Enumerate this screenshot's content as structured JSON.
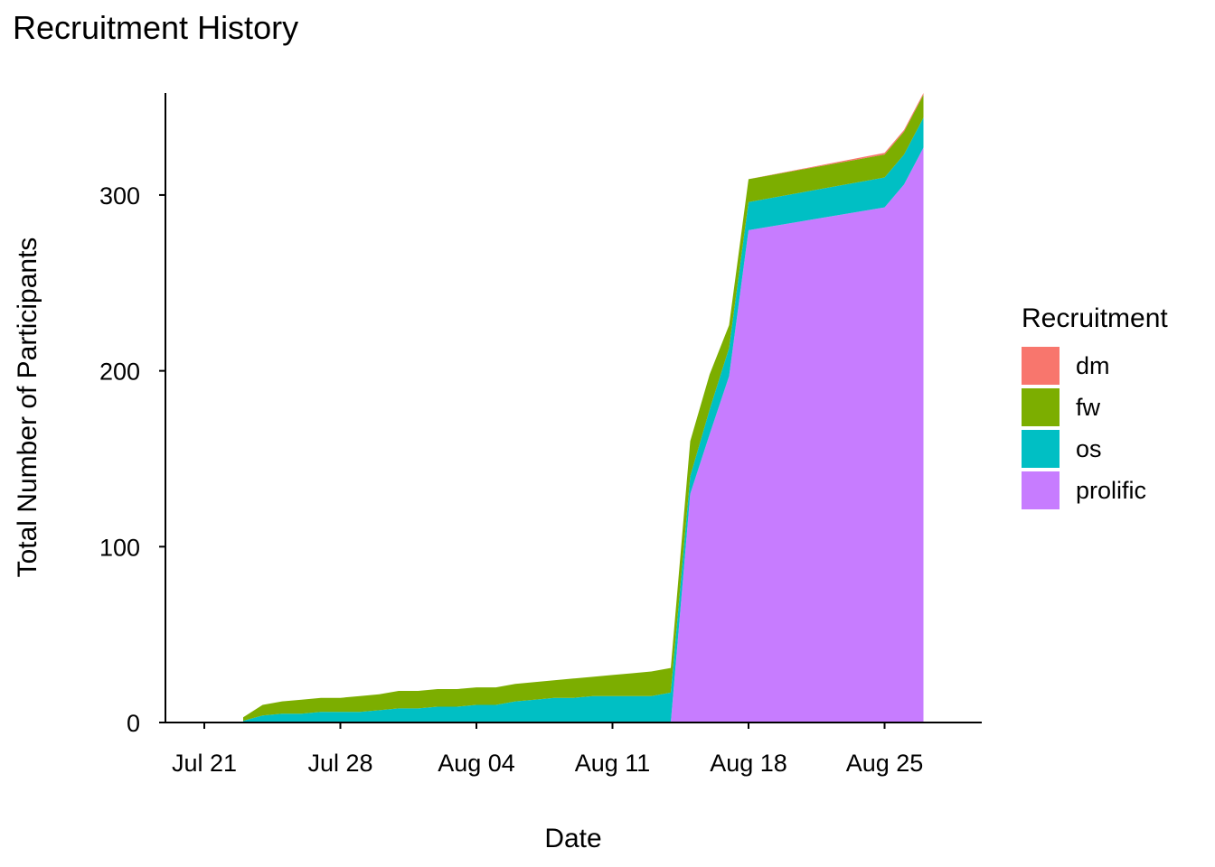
{
  "chart_data": {
    "type": "area",
    "title": "Recruitment History",
    "xlabel": "Date",
    "ylabel": "Total Number of Participants",
    "x_ticks": [
      "2022-07-21",
      "2022-07-28",
      "2022-08-04",
      "2022-08-11",
      "2022-08-18",
      "2022-08-25"
    ],
    "x_tick_labels": [
      "Jul 21",
      "Jul 28",
      "Aug 04",
      "Aug 11",
      "Aug 18",
      "Aug 25"
    ],
    "xlim": [
      "2022-07-19",
      "2022-08-30"
    ],
    "y_ticks": [
      0,
      100,
      200,
      300
    ],
    "ylim": [
      0,
      358
    ],
    "stacked": true,
    "grid": false,
    "legend_title": "Recruitment",
    "legend_position": "right",
    "x": [
      "2022-07-23",
      "2022-07-24",
      "2022-07-25",
      "2022-07-26",
      "2022-07-27",
      "2022-07-28",
      "2022-07-29",
      "2022-07-30",
      "2022-07-31",
      "2022-08-01",
      "2022-08-02",
      "2022-08-03",
      "2022-08-04",
      "2022-08-05",
      "2022-08-06",
      "2022-08-07",
      "2022-08-08",
      "2022-08-09",
      "2022-08-10",
      "2022-08-11",
      "2022-08-12",
      "2022-08-13",
      "2022-08-14",
      "2022-08-15",
      "2022-08-16",
      "2022-08-17",
      "2022-08-18",
      "2022-08-25",
      "2022-08-26",
      "2022-08-27"
    ],
    "series": [
      {
        "name": "prolific",
        "color": "#C77CFF",
        "values": [
          0,
          0,
          0,
          0,
          0,
          0,
          0,
          0,
          0,
          0,
          0,
          0,
          0,
          0,
          0,
          0,
          0,
          0,
          0,
          0,
          0,
          0,
          0,
          130,
          164,
          197,
          280,
          293,
          306,
          327
        ]
      },
      {
        "name": "os",
        "color": "#00BFC4",
        "values": [
          1,
          4,
          5,
          5,
          6,
          6,
          6,
          7,
          8,
          8,
          9,
          9,
          10,
          10,
          12,
          13,
          14,
          14,
          15,
          15,
          15,
          15,
          17,
          10,
          14,
          16,
          16,
          17,
          17,
          17
        ]
      },
      {
        "name": "fw",
        "color": "#7CAE00",
        "values": [
          2,
          6,
          7,
          8,
          8,
          8,
          9,
          9,
          10,
          10,
          10,
          10,
          10,
          10,
          10,
          10,
          10,
          11,
          11,
          12,
          13,
          14,
          14,
          20,
          20,
          13,
          13,
          13,
          13,
          13
        ]
      },
      {
        "name": "dm",
        "color": "#F8766D",
        "values": [
          0,
          0,
          0,
          0,
          0,
          0,
          0,
          0,
          0,
          0,
          0,
          0,
          0,
          0,
          0,
          0,
          0,
          0,
          0,
          0,
          0,
          0,
          0,
          0,
          0,
          0,
          0,
          1,
          1,
          1
        ]
      }
    ]
  }
}
